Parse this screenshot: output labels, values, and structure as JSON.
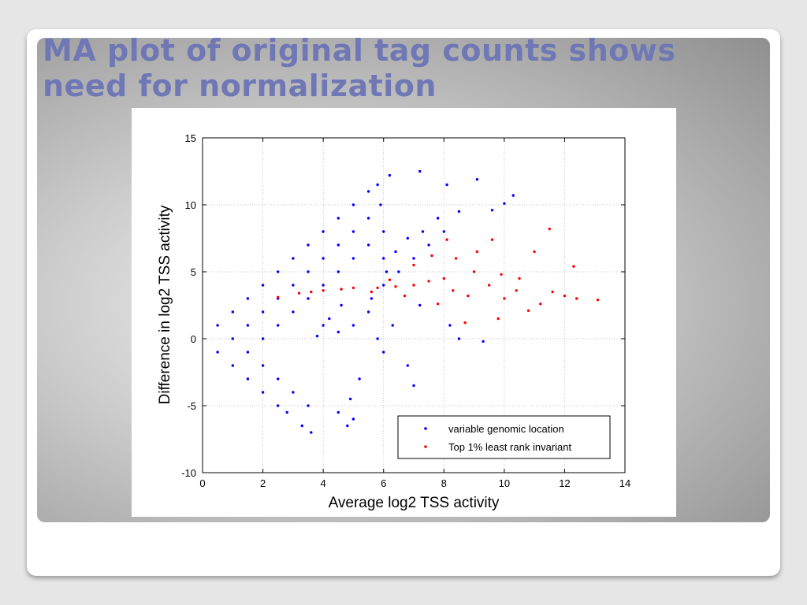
{
  "slide": {
    "title": "MA plot of original tag counts shows need for normalization"
  },
  "chart_data": {
    "type": "scatter",
    "xlabel": "Average log2 TSS activity",
    "ylabel": "Difference in log2 TSS activity",
    "xlim": [
      0,
      14
    ],
    "ylim": [
      -10,
      15
    ],
    "xticks": [
      0,
      2,
      4,
      6,
      8,
      10,
      12,
      14
    ],
    "yticks": [
      -10,
      -5,
      0,
      5,
      10,
      15
    ],
    "grid": true,
    "legend_position": "bottom-right",
    "series": [
      {
        "name": "variable genomic location",
        "color": "#0000ff",
        "points": [
          [
            0.5,
            1.0
          ],
          [
            1.0,
            2.0
          ],
          [
            1.5,
            3.0
          ],
          [
            2.0,
            4.0
          ],
          [
            2.5,
            5.0
          ],
          [
            3.0,
            6.0
          ],
          [
            3.5,
            7.0
          ],
          [
            4.0,
            8.0
          ],
          [
            4.5,
            9.0
          ],
          [
            5.0,
            10.0
          ],
          [
            5.5,
            11.0
          ],
          [
            5.8,
            11.5
          ],
          [
            0.5,
            -1.0
          ],
          [
            1.0,
            -2.0
          ],
          [
            1.5,
            -3.0
          ],
          [
            2.0,
            -4.0
          ],
          [
            2.5,
            -5.0
          ],
          [
            1.0,
            0.0
          ],
          [
            1.5,
            1.0
          ],
          [
            2.0,
            2.0
          ],
          [
            2.5,
            3.0
          ],
          [
            3.0,
            4.0
          ],
          [
            3.5,
            5.0
          ],
          [
            4.0,
            6.0
          ],
          [
            4.5,
            7.0
          ],
          [
            5.0,
            8.0
          ],
          [
            5.5,
            9.0
          ],
          [
            5.9,
            10.0
          ],
          [
            1.5,
            -1.0
          ],
          [
            2.0,
            -2.0
          ],
          [
            2.5,
            -3.0
          ],
          [
            3.0,
            -4.0
          ],
          [
            3.5,
            -5.0
          ],
          [
            2.0,
            0.0
          ],
          [
            2.5,
            1.0
          ],
          [
            3.0,
            2.0
          ],
          [
            3.5,
            3.0
          ],
          [
            4.0,
            4.0
          ],
          [
            4.5,
            5.0
          ],
          [
            5.0,
            6.0
          ],
          [
            5.5,
            7.0
          ],
          [
            6.0,
            8.0
          ],
          [
            6.2,
            12.2
          ],
          [
            7.2,
            12.5
          ],
          [
            8.1,
            11.5
          ],
          [
            9.1,
            11.9
          ],
          [
            10.3,
            10.7
          ],
          [
            10.0,
            10.1
          ],
          [
            9.6,
            9.6
          ],
          [
            5.5,
            2.0
          ],
          [
            5.0,
            1.0
          ],
          [
            4.5,
            0.5
          ],
          [
            4.2,
            1.5
          ],
          [
            3.8,
            0.2
          ],
          [
            6.0,
            4.0
          ],
          [
            6.5,
            5.0
          ],
          [
            7.0,
            6.0
          ],
          [
            7.5,
            7.0
          ],
          [
            8.0,
            8.0
          ],
          [
            5.2,
            -3.0
          ],
          [
            4.9,
            -4.5
          ],
          [
            4.5,
            -5.5
          ],
          [
            4.8,
            -6.5
          ],
          [
            5.0,
            -6.0
          ],
          [
            3.6,
            -7.0
          ],
          [
            3.3,
            -6.5
          ],
          [
            2.8,
            -5.5
          ],
          [
            6.8,
            -2.0
          ],
          [
            7.0,
            -3.5
          ],
          [
            6.0,
            -1.0
          ],
          [
            5.8,
            0.0
          ],
          [
            6.3,
            1.0
          ],
          [
            7.2,
            2.5
          ],
          [
            8.2,
            1.0
          ],
          [
            8.5,
            0.0
          ],
          [
            9.3,
            -0.2
          ],
          [
            6.0,
            6.0
          ],
          [
            6.4,
            6.5
          ],
          [
            6.8,
            7.5
          ],
          [
            7.3,
            8.0
          ],
          [
            7.8,
            9.0
          ],
          [
            8.5,
            9.5
          ],
          [
            6.1,
            5.0
          ],
          [
            5.6,
            3.0
          ],
          [
            4.6,
            2.5
          ],
          [
            4.0,
            1.0
          ]
        ]
      },
      {
        "name": "Top 1% least rank invariant",
        "color": "#ff0000",
        "points": [
          [
            2.5,
            3.1
          ],
          [
            3.2,
            3.4
          ],
          [
            4.0,
            3.6
          ],
          [
            5.0,
            3.8
          ],
          [
            5.8,
            3.8
          ],
          [
            6.4,
            3.9
          ],
          [
            7.0,
            4.0
          ],
          [
            7.5,
            4.3
          ],
          [
            8.0,
            4.5
          ],
          [
            8.3,
            3.6
          ],
          [
            8.8,
            3.2
          ],
          [
            9.0,
            5.0
          ],
          [
            9.5,
            4.0
          ],
          [
            10.0,
            3.0
          ],
          [
            10.5,
            4.5
          ],
          [
            11.0,
            6.5
          ],
          [
            11.5,
            8.2
          ],
          [
            12.0,
            3.2
          ],
          [
            12.4,
            3.0
          ],
          [
            13.1,
            2.9
          ],
          [
            12.3,
            5.4
          ],
          [
            11.6,
            3.5
          ],
          [
            10.8,
            2.1
          ],
          [
            9.8,
            1.5
          ],
          [
            8.7,
            1.2
          ],
          [
            7.8,
            2.6
          ],
          [
            7.0,
            5.5
          ],
          [
            7.6,
            6.2
          ],
          [
            8.4,
            6.0
          ],
          [
            9.1,
            6.5
          ],
          [
            9.6,
            7.4
          ],
          [
            10.4,
            3.6
          ],
          [
            11.2,
            2.6
          ],
          [
            8.1,
            7.4
          ],
          [
            6.7,
            3.2
          ],
          [
            6.2,
            4.4
          ],
          [
            5.6,
            3.5
          ],
          [
            4.6,
            3.7
          ],
          [
            3.6,
            3.5
          ],
          [
            9.9,
            4.8
          ]
        ]
      }
    ]
  }
}
